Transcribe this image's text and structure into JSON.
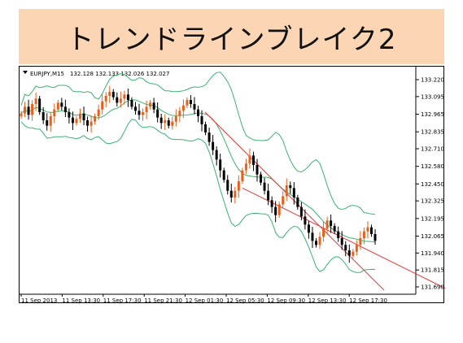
{
  "title": "トレンドラインブレイク2",
  "colors": {
    "banner": "#fcd5b5",
    "bull_candle": "#e8601c",
    "bear_candle": "#000000",
    "bands": "#3cb371",
    "trendline": "#e8393a"
  },
  "chart_data": {
    "type": "candlestick",
    "header": {
      "symbol_label": "EURJPY,M15",
      "ohlc_text": "132.128 132.133 132.026 132.027"
    },
    "yticks": [
      "133.220",
      "133.095",
      "132.965",
      "132.835",
      "132.710",
      "132.580",
      "132.450",
      "132.325",
      "132.195",
      "132.065",
      "131.940",
      "131.815",
      "131.690"
    ],
    "ylim": [
      131.69,
      133.22
    ],
    "xticks": [
      "11 Sep 2013",
      "11 Sep 13:30",
      "11 Sep 17:30",
      "11 Sep 21:30",
      "12 Sep 01:30",
      "12 Sep 05:30",
      "12 Sep 09:30",
      "12 Sep 13:30",
      "12 Sep 17:30"
    ],
    "close": [
      132.97,
      133.02,
      132.96,
      133.04,
      133.08,
      132.98,
      132.92,
      132.88,
      132.95,
      133.0,
      133.05,
      133.02,
      132.98,
      132.94,
      132.9,
      132.93,
      132.97,
      132.92,
      132.88,
      132.91,
      132.95,
      133.0,
      133.06,
      133.1,
      133.13,
      133.09,
      133.05,
      133.08,
      133.11,
      133.07,
      133.02,
      132.99,
      132.96,
      132.98,
      133.02,
      133.05,
      133.0,
      132.94,
      132.9,
      132.92,
      132.88,
      132.91,
      132.95,
      132.99,
      133.03,
      133.07,
      133.04,
      133.0,
      132.95,
      132.89,
      132.83,
      132.76,
      132.7,
      132.63,
      132.55,
      132.48,
      132.4,
      132.35,
      132.4,
      132.47,
      132.55,
      132.6,
      132.66,
      132.59,
      132.52,
      132.46,
      132.4,
      132.33,
      132.28,
      132.22,
      132.3,
      132.36,
      132.44,
      132.42,
      132.35,
      132.28,
      132.21,
      132.15,
      132.09,
      132.03,
      132.0,
      132.06,
      132.12,
      132.18,
      132.14,
      132.1,
      132.05,
      132.0,
      131.96,
      131.92,
      131.95,
      132.0,
      132.05,
      132.1,
      132.13,
      132.08,
      132.03
    ],
    "lower_trendline_price": [
      [
        60,
        132.42
      ],
      [
        115,
        131.68
      ]
    ],
    "annotations": []
  }
}
